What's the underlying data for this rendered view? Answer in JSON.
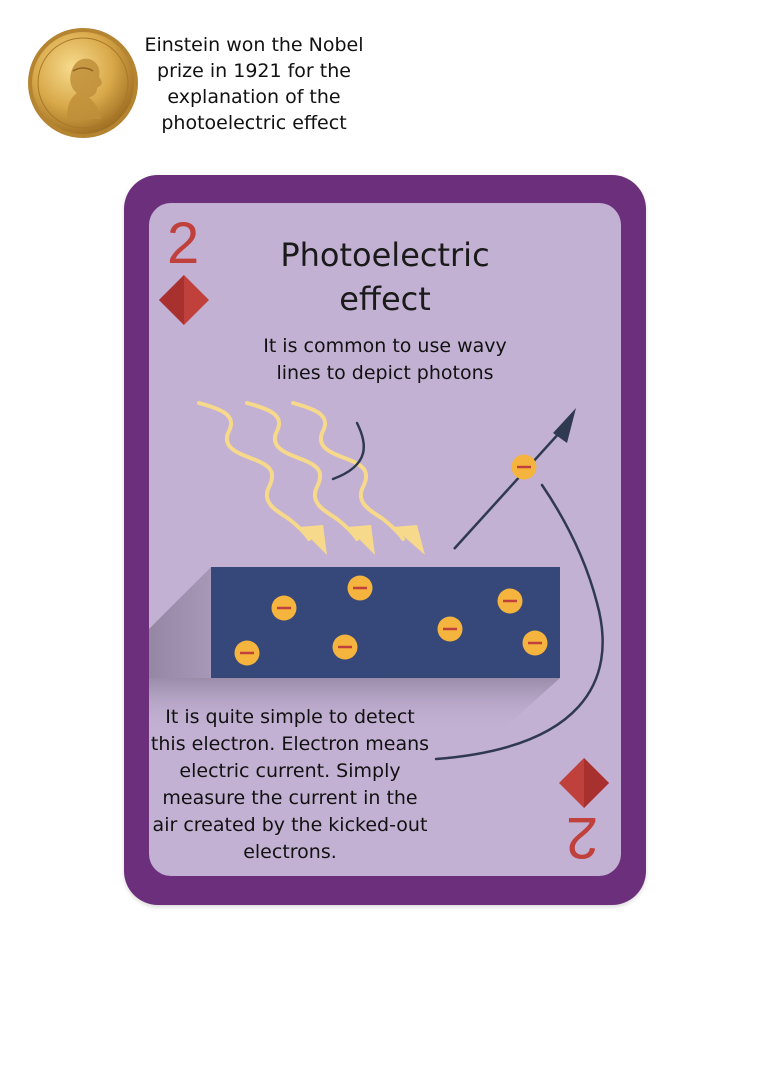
{
  "caption": "Einstein won the Nobel prize in 1921 for the explanation of the photoelectric effect",
  "card": {
    "rank": "2",
    "suit_icon": "diamond-icon",
    "suit_color": "#c0413c",
    "title": "Photoelectric effect",
    "note_top": "It is common to use wavy lines to depict photons",
    "note_bottom": "It is quite simple to detect this electron. Electron means electric current. Simply measure the current in the air created by the kicked-out electrons.",
    "electron_symbol": "−",
    "colors": {
      "card_border": "#6c2f7c",
      "card_face": "#c3b1d3",
      "metal": "#36487a",
      "photon": "#f6d98a",
      "electron": "#f4b43e",
      "arrow": "#2f3a50"
    }
  }
}
